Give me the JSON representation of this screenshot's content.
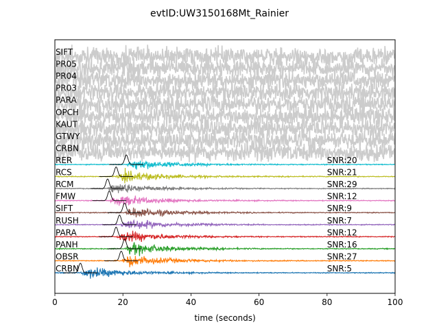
{
  "chart_data": {
    "type": "line",
    "title": "evtID:UW3150168Mt_Rainier",
    "xlabel": "time (seconds)",
    "ylabel": "",
    "xlim": [
      0,
      100
    ],
    "xticks": [
      "0",
      "20",
      "40",
      "60",
      "80",
      "100"
    ],
    "noise_color": "#cccccc",
    "noise_traces": [
      {
        "station": "SIFT"
      },
      {
        "station": "PR05"
      },
      {
        "station": "PR04"
      },
      {
        "station": "PR03"
      },
      {
        "station": "PARA"
      },
      {
        "station": "OPCH"
      },
      {
        "station": "KAUT"
      },
      {
        "station": "GTWY"
      },
      {
        "station": "CRBN"
      }
    ],
    "detections": [
      {
        "station": "RER",
        "snr": "SNR:20",
        "color": "#17becf",
        "pick_time": 21.0
      },
      {
        "station": "RCS",
        "snr": "SNR:21",
        "color": "#bcbd22",
        "pick_time": 18.0
      },
      {
        "station": "RCM",
        "snr": "SNR:29",
        "color": "#7f7f7f",
        "pick_time": 15.5
      },
      {
        "station": "FMW",
        "snr": "SNR:12",
        "color": "#e377c2",
        "pick_time": 16.0
      },
      {
        "station": "SIFT",
        "snr": "SNR:9",
        "color": "#8c564b",
        "pick_time": 20.5
      },
      {
        "station": "RUSH",
        "snr": "SNR:7",
        "color": "#9467bd",
        "pick_time": 19.0
      },
      {
        "station": "PARA",
        "snr": "SNR:12",
        "color": "#d62728",
        "pick_time": 18.0
      },
      {
        "station": "PANH",
        "snr": "SNR:16",
        "color": "#2ca02c",
        "pick_time": 20.5
      },
      {
        "station": "OBSR",
        "snr": "SNR:27",
        "color": "#ff7f0e",
        "pick_time": 19.5
      },
      {
        "station": "CRBN",
        "snr": "SNR:5",
        "color": "#1f77b4",
        "pick_time": 7.5
      }
    ],
    "grid": false,
    "legend": "none"
  }
}
